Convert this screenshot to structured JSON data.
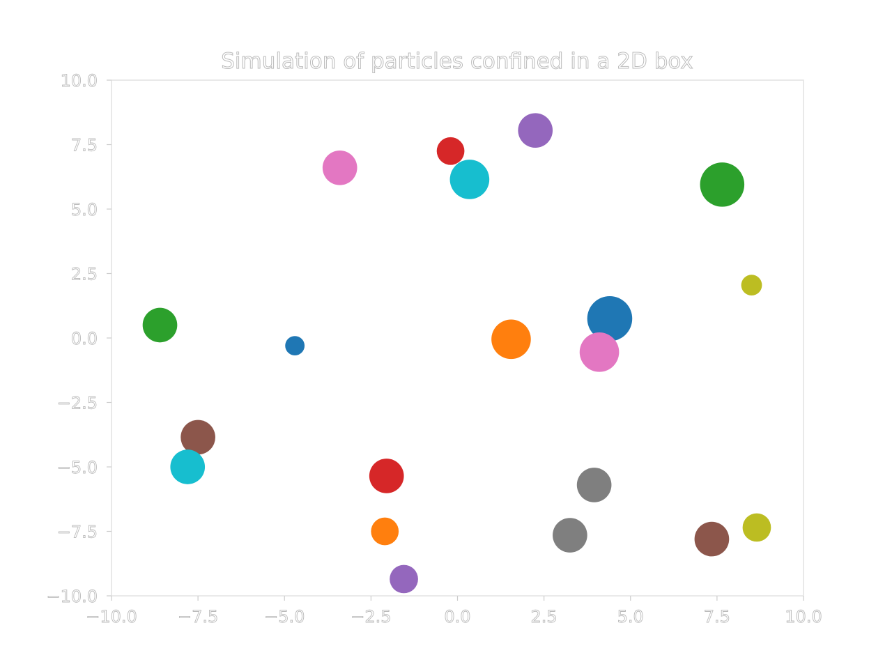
{
  "chart_data": {
    "type": "scatter",
    "title": "Simulation of particles confined in a 2D box",
    "xlabel": "",
    "ylabel": "",
    "xlim": [
      -10,
      10
    ],
    "ylim": [
      -10,
      10
    ],
    "xticks": [
      -10.0,
      -7.5,
      -5.0,
      -2.5,
      0.0,
      2.5,
      5.0,
      7.5,
      10.0
    ],
    "yticks": [
      -10.0,
      -7.5,
      -5.0,
      -2.5,
      0.0,
      2.5,
      5.0,
      7.5,
      10.0
    ],
    "xtick_labels": [
      "−10.0",
      "−7.5",
      "−5.0",
      "−2.5",
      "0.0",
      "2.5",
      "5.0",
      "7.5",
      "10.0"
    ],
    "ytick_labels": [
      "−10.0",
      "−7.5",
      "−5.0",
      "−2.5",
      "0.0",
      "2.5",
      "5.0",
      "7.5",
      "10.0"
    ],
    "grid": false,
    "legend": "none",
    "particles": [
      {
        "x": -4.7,
        "y": -0.3,
        "r": 0.28,
        "color": "#1f77b4"
      },
      {
        "x": 4.4,
        "y": 0.75,
        "r": 0.65,
        "color": "#1f77b4"
      },
      {
        "x": 1.55,
        "y": -0.05,
        "r": 0.57,
        "color": "#ff7f0e"
      },
      {
        "x": -2.1,
        "y": -7.5,
        "r": 0.4,
        "color": "#ff7f0e"
      },
      {
        "x": -8.6,
        "y": 0.5,
        "r": 0.5,
        "color": "#2ca02c"
      },
      {
        "x": 7.65,
        "y": 5.95,
        "r": 0.64,
        "color": "#2ca02c"
      },
      {
        "x": -0.2,
        "y": 7.25,
        "r": 0.4,
        "color": "#d62728"
      },
      {
        "x": -2.05,
        "y": -5.35,
        "r": 0.5,
        "color": "#d62728"
      },
      {
        "x": 2.25,
        "y": 8.05,
        "r": 0.5,
        "color": "#9467bd"
      },
      {
        "x": -1.55,
        "y": -9.35,
        "r": 0.41,
        "color": "#9467bd"
      },
      {
        "x": -7.5,
        "y": -3.85,
        "r": 0.5,
        "color": "#8c564b"
      },
      {
        "x": 7.35,
        "y": -7.8,
        "r": 0.5,
        "color": "#8c564b"
      },
      {
        "x": -3.4,
        "y": 6.6,
        "r": 0.5,
        "color": "#e377c2"
      },
      {
        "x": 4.1,
        "y": -0.55,
        "r": 0.57,
        "color": "#e377c2"
      },
      {
        "x": 3.95,
        "y": -5.7,
        "r": 0.5,
        "color": "#7f7f7f"
      },
      {
        "x": 3.25,
        "y": -7.65,
        "r": 0.5,
        "color": "#7f7f7f"
      },
      {
        "x": 8.5,
        "y": 2.05,
        "r": 0.3,
        "color": "#bcbd22"
      },
      {
        "x": 8.65,
        "y": -7.35,
        "r": 0.41,
        "color": "#bcbd22"
      },
      {
        "x": 0.35,
        "y": 6.15,
        "r": 0.57,
        "color": "#17becf"
      },
      {
        "x": -7.8,
        "y": -5.0,
        "r": 0.5,
        "color": "#17becf"
      }
    ]
  }
}
